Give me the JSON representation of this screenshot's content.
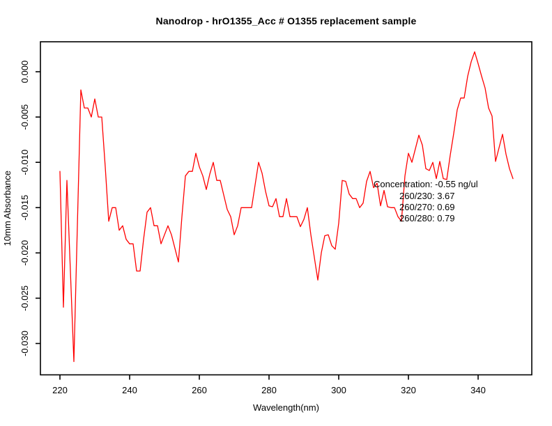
{
  "window": {
    "background": "#ffffff",
    "foreground": "#000000"
  },
  "chart_data": {
    "type": "line",
    "title": "Nanodrop - hrO1355_Acc # O1355 replacement sample",
    "xlabel": "Wavelength(nm)",
    "ylabel": "10mm Absorbance",
    "line_color": "#ff0000",
    "axis_color": "#000000",
    "grid": false,
    "legend": "none",
    "xlim": [
      214.4,
      355.4
    ],
    "ylim": [
      -0.03346,
      0.00331
    ],
    "x_ticks": [
      220,
      240,
      260,
      280,
      300,
      320,
      340
    ],
    "x_tick_labels": [
      "220",
      "240",
      "260",
      "280",
      "300",
      "320",
      "340"
    ],
    "y_ticks": [
      0.0,
      -0.005,
      -0.01,
      -0.015,
      -0.02,
      -0.025,
      -0.03
    ],
    "y_tick_labels": [
      "0.000",
      "-0.005",
      "-0.010",
      "-0.015",
      "-0.020",
      "-0.025",
      "-0.030"
    ],
    "series": [
      {
        "name": "10mm Absorbance",
        "x": [
          220,
          221,
          222,
          223,
          224,
          225,
          226,
          227,
          228,
          229,
          230,
          231,
          232,
          233,
          234,
          235,
          236,
          237,
          238,
          239,
          240,
          241,
          242,
          243,
          244,
          245,
          246,
          247,
          248,
          249,
          250,
          251,
          252,
          253,
          254,
          255,
          256,
          257,
          258,
          259,
          260,
          261,
          262,
          263,
          264,
          265,
          266,
          267,
          268,
          269,
          270,
          271,
          272,
          273,
          274,
          275,
          276,
          277,
          278,
          279,
          280,
          281,
          282,
          283,
          284,
          285,
          286,
          287,
          288,
          289,
          290,
          291,
          292,
          293,
          294,
          295,
          296,
          297,
          298,
          299,
          300,
          301,
          302,
          303,
          304,
          305,
          306,
          307,
          308,
          309,
          310,
          311,
          312,
          313,
          314,
          315,
          316,
          317,
          318,
          319,
          320,
          321,
          322,
          323,
          324,
          325,
          326,
          327,
          328,
          329,
          330,
          331,
          332,
          333,
          334,
          335,
          336,
          337,
          338,
          339,
          340,
          341,
          342,
          343,
          344,
          345,
          346,
          347,
          348,
          349,
          350
        ],
        "y": [
          -0.011,
          -0.026,
          -0.012,
          -0.022,
          -0.032,
          -0.017,
          -0.002,
          -0.004,
          -0.004,
          -0.005,
          -0.003,
          -0.005,
          -0.005,
          -0.0105,
          -0.0165,
          -0.015,
          -0.015,
          -0.0175,
          -0.017,
          -0.0185,
          -0.019,
          -0.019,
          -0.022,
          -0.022,
          -0.0185,
          -0.0155,
          -0.015,
          -0.017,
          -0.017,
          -0.019,
          -0.018,
          -0.017,
          -0.018,
          -0.0195,
          -0.021,
          -0.016,
          -0.0115,
          -0.011,
          -0.011,
          -0.009,
          -0.0105,
          -0.0115,
          -0.013,
          -0.0113,
          -0.01,
          -0.012,
          -0.012,
          -0.0136,
          -0.0152,
          -0.016,
          -0.018,
          -0.017,
          -0.015,
          -0.015,
          -0.015,
          -0.015,
          -0.0125,
          -0.01,
          -0.0112,
          -0.0132,
          -0.0148,
          -0.0149,
          -0.014,
          -0.016,
          -0.016,
          -0.014,
          -0.016,
          -0.016,
          -0.016,
          -0.0171,
          -0.0163,
          -0.015,
          -0.018,
          -0.0205,
          -0.023,
          -0.02,
          -0.0181,
          -0.018,
          -0.0192,
          -0.0196,
          -0.0167,
          -0.012,
          -0.0121,
          -0.0135,
          -0.014,
          -0.014,
          -0.015,
          -0.0145,
          -0.0121,
          -0.011,
          -0.0128,
          -0.0123,
          -0.0148,
          -0.0131,
          -0.0149,
          -0.015,
          -0.015,
          -0.016,
          -0.0165,
          -0.0115,
          -0.009,
          -0.01,
          -0.0085,
          -0.007,
          -0.0081,
          -0.0107,
          -0.0109,
          -0.01,
          -0.0118,
          -0.0099,
          -0.0118,
          -0.0119,
          -0.0092,
          -0.0068,
          -0.0042,
          -0.0029,
          -0.0029,
          -0.0005,
          0.0011,
          0.0022,
          0.0009,
          -0.0005,
          -0.0018,
          -0.004,
          -0.0049,
          -0.0099,
          -0.0084,
          -0.0069,
          -0.0091,
          -0.0107,
          -0.0118
        ]
      }
    ],
    "annotation": {
      "lines": [
        "Concentration: -0.55 ng/ul",
        "260/230: 3.67",
        "260/270: 0.69",
        "260/280: 0.79"
      ]
    }
  }
}
